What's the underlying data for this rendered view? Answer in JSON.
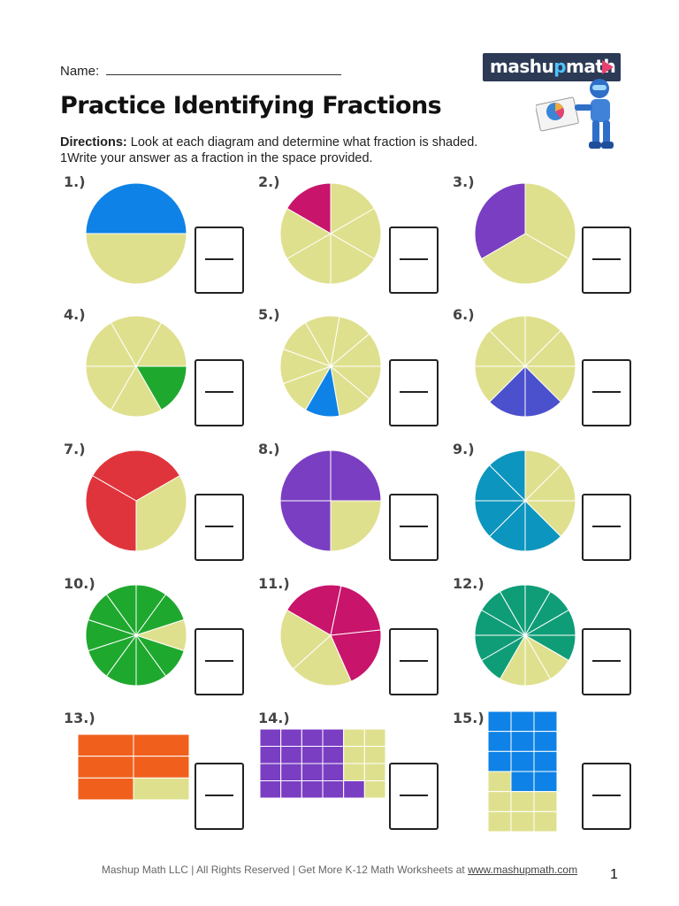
{
  "header": {
    "name_label": "Name: ",
    "title": "Practice Identifying Fractions",
    "directions_label": "Directions:",
    "directions_line1": " Look at each diagram and determine what fraction is shaded.",
    "directions_line2": "1Write your answer as a fraction in the space provided."
  },
  "logo": {
    "text_start": "mashu",
    "text_accent": "p",
    "text_end": "math",
    "icon": "play-icon"
  },
  "colors": {
    "unshaded": "#dfe08e",
    "outline": "#ffffff"
  },
  "problems": [
    {
      "label": "1.)",
      "type": "circle",
      "parts": 2,
      "shaded": [
        0
      ],
      "color": "#0e82e6",
      "start_deg": 270
    },
    {
      "label": "2.)",
      "type": "circle",
      "parts": 6,
      "shaded": [
        0
      ],
      "color": "#c8146b",
      "start_deg": 300
    },
    {
      "label": "3.)",
      "type": "circle",
      "parts": 3,
      "shaded": [
        2
      ],
      "color": "#7a3ec2",
      "start_deg": 0
    },
    {
      "label": "4.)",
      "type": "circle",
      "parts": 6,
      "shaded": [
        1
      ],
      "color": "#1fa82e",
      "start_deg": 30
    },
    {
      "label": "5.)",
      "type": "circle",
      "parts": 9,
      "shaded": [
        4
      ],
      "color": "#0e82e6",
      "start_deg": 10
    },
    {
      "label": "6.)",
      "type": "circle",
      "parts": 8,
      "shaded": [
        3,
        4
      ],
      "color": "#4b50cc",
      "start_deg": 0
    },
    {
      "label": "7.)",
      "type": "circle",
      "parts": 3,
      "shaded": [
        1,
        2
      ],
      "color": "#e0343c",
      "start_deg": 60
    },
    {
      "label": "8.)",
      "type": "circle",
      "parts": 4,
      "shaded": [
        0,
        2,
        3
      ],
      "color": "#7a3ec2",
      "start_deg": 0
    },
    {
      "label": "9.)",
      "type": "circle",
      "parts": 8,
      "shaded": [
        3,
        4,
        5,
        6,
        7
      ],
      "color": "#0c95be",
      "start_deg": 0
    },
    {
      "label": "10.)",
      "type": "circle",
      "parts": 10,
      "shaded": [
        0,
        1,
        3,
        4,
        5,
        6,
        7,
        8,
        9
      ],
      "color": "#1fa82e",
      "start_deg": 0
    },
    {
      "label": "11.)",
      "type": "circle",
      "parts": 5,
      "shaded": [
        0,
        1,
        2
      ],
      "color": "#c8146b",
      "start_deg": 300
    },
    {
      "label": "12.)",
      "type": "circle",
      "parts": 12,
      "shaded": [
        0,
        1,
        2,
        3,
        7,
        8,
        9,
        10,
        11
      ],
      "color": "#0f9d77",
      "start_deg": 0
    },
    {
      "label": "13.)",
      "type": "grid",
      "rows": 3,
      "cols": 2,
      "shaded": [
        0,
        1,
        2,
        3,
        4
      ],
      "color": "#f0601c"
    },
    {
      "label": "14.)",
      "type": "grid",
      "rows": 4,
      "cols": 6,
      "shaded": [
        0,
        1,
        2,
        3,
        6,
        7,
        8,
        9,
        12,
        13,
        14,
        15,
        18,
        19,
        20,
        21,
        22
      ],
      "color": "#7a3ec2"
    },
    {
      "label": "15.)",
      "type": "grid",
      "rows": 6,
      "cols": 3,
      "shaded": [
        0,
        1,
        2,
        3,
        4,
        5,
        6,
        7,
        8,
        10,
        11
      ],
      "color": "#0e82e6"
    }
  ],
  "footer": {
    "text": "Mashup Math LLC | All Rights Reserved | Get More K-12 Math Worksheets at ",
    "link": "www.mashupmath.com",
    "page_number": "1"
  }
}
